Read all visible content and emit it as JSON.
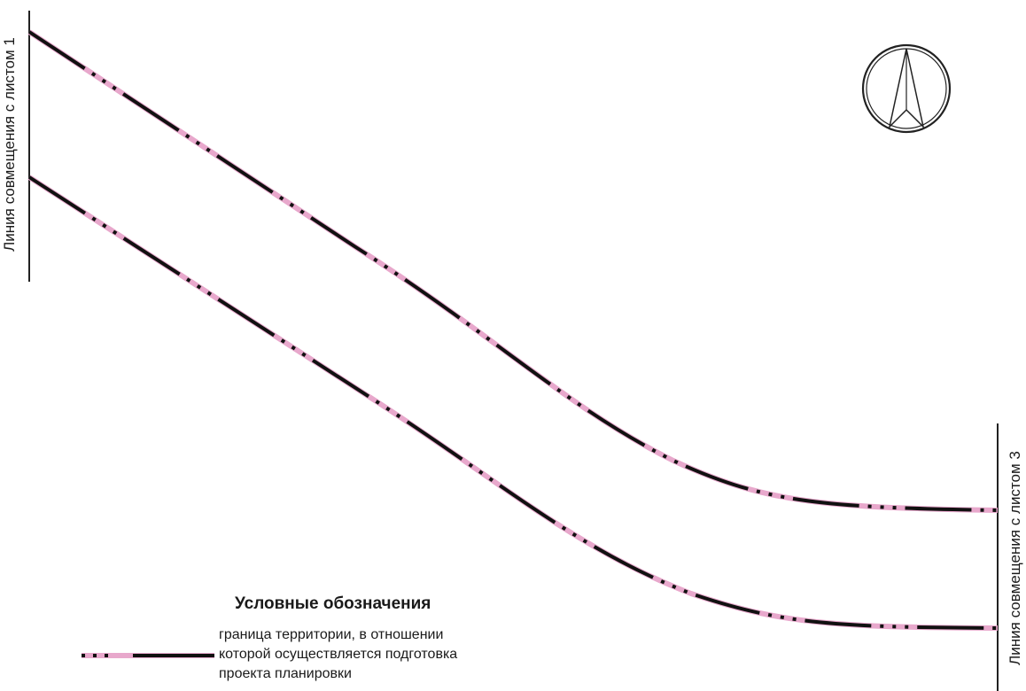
{
  "map": {
    "match_line_left": "Линия совмещения с листом 1",
    "match_line_right": "Линия совмещения с листом 3",
    "north_arrow_icon": "north-arrow-icon",
    "boundary_colors": {
      "base": "#e8a8cc",
      "dash": "#111111"
    }
  },
  "legend": {
    "title": "Условные обозначения",
    "items": [
      {
        "symbol": "territory-boundary-line",
        "lines": [
          "граница территории, в отношении",
          "которой осуществляется подготовка",
          "проекта планировки"
        ]
      }
    ]
  }
}
